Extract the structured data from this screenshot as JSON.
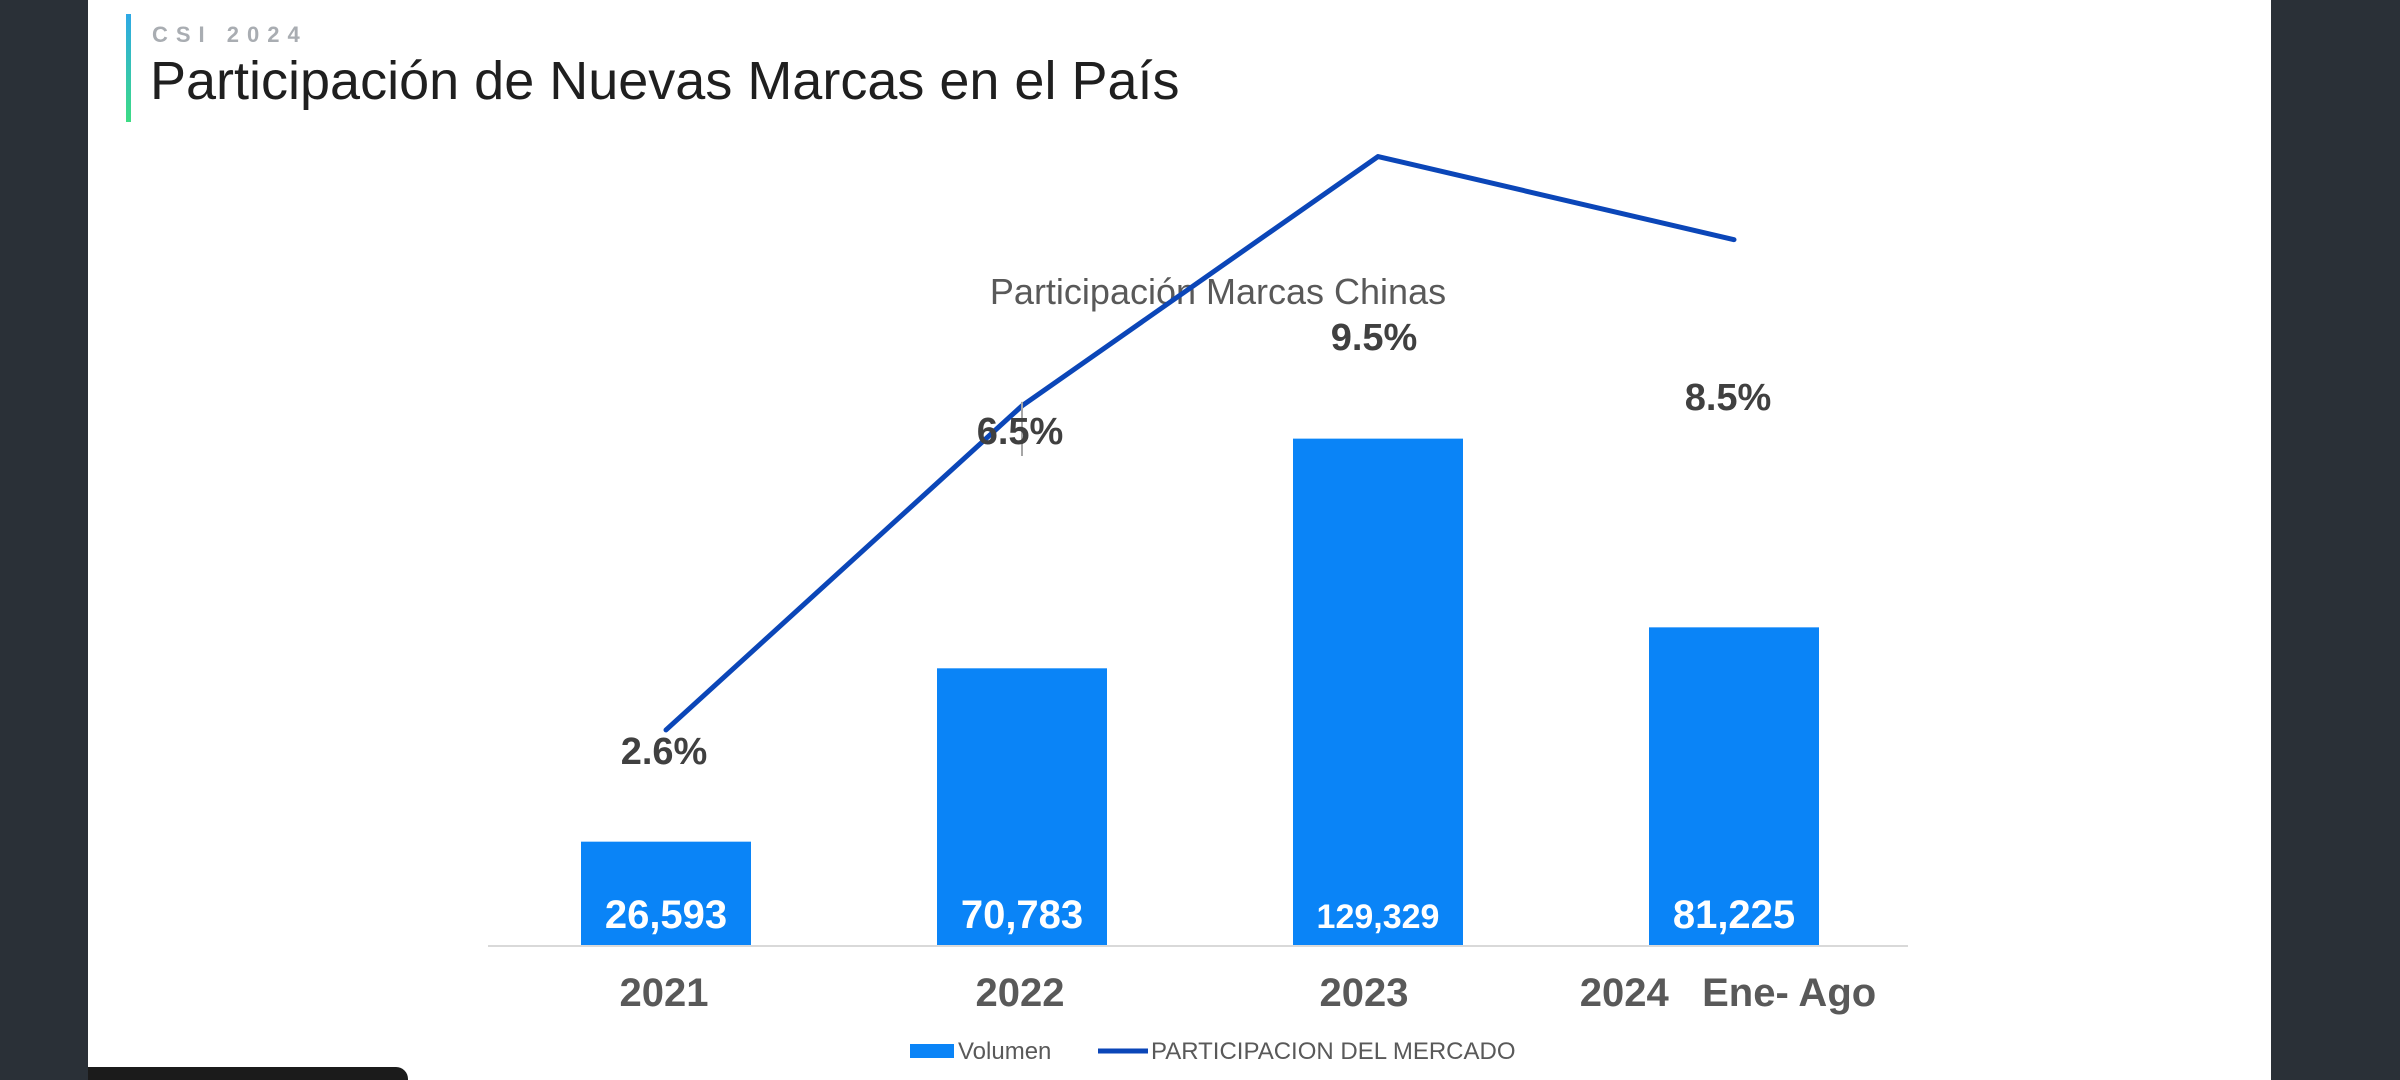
{
  "header": {
    "eyebrow": "CSI 2024",
    "title": "Participación de Nuevas Marcas en el País"
  },
  "colors": {
    "bar": "#0a84f7",
    "line": "#0b46b8",
    "leader": "#a6a6a6",
    "axis": "#d9d9d9"
  },
  "chart_data": {
    "type": "bar",
    "title": "Participación Marcas Chinas",
    "categories": [
      "2021",
      "2022",
      "2023",
      "2024   Ene- Ago"
    ],
    "series": [
      {
        "name": "Volumen",
        "type": "bar",
        "axis": "left",
        "values": [
          26593,
          70783,
          129329,
          81225
        ],
        "labels": [
          "26,593",
          "70,783",
          "129,329",
          "81,225"
        ]
      },
      {
        "name": "PARTICIPACION DEL MERCADO",
        "type": "line",
        "axis": "right",
        "values": [
          2.6,
          6.5,
          9.5,
          8.5
        ],
        "labels": [
          "2.6%",
          "6.5%",
          "9.5%",
          "8.5%"
        ]
      }
    ],
    "legend": "bottom",
    "grid": false
  }
}
